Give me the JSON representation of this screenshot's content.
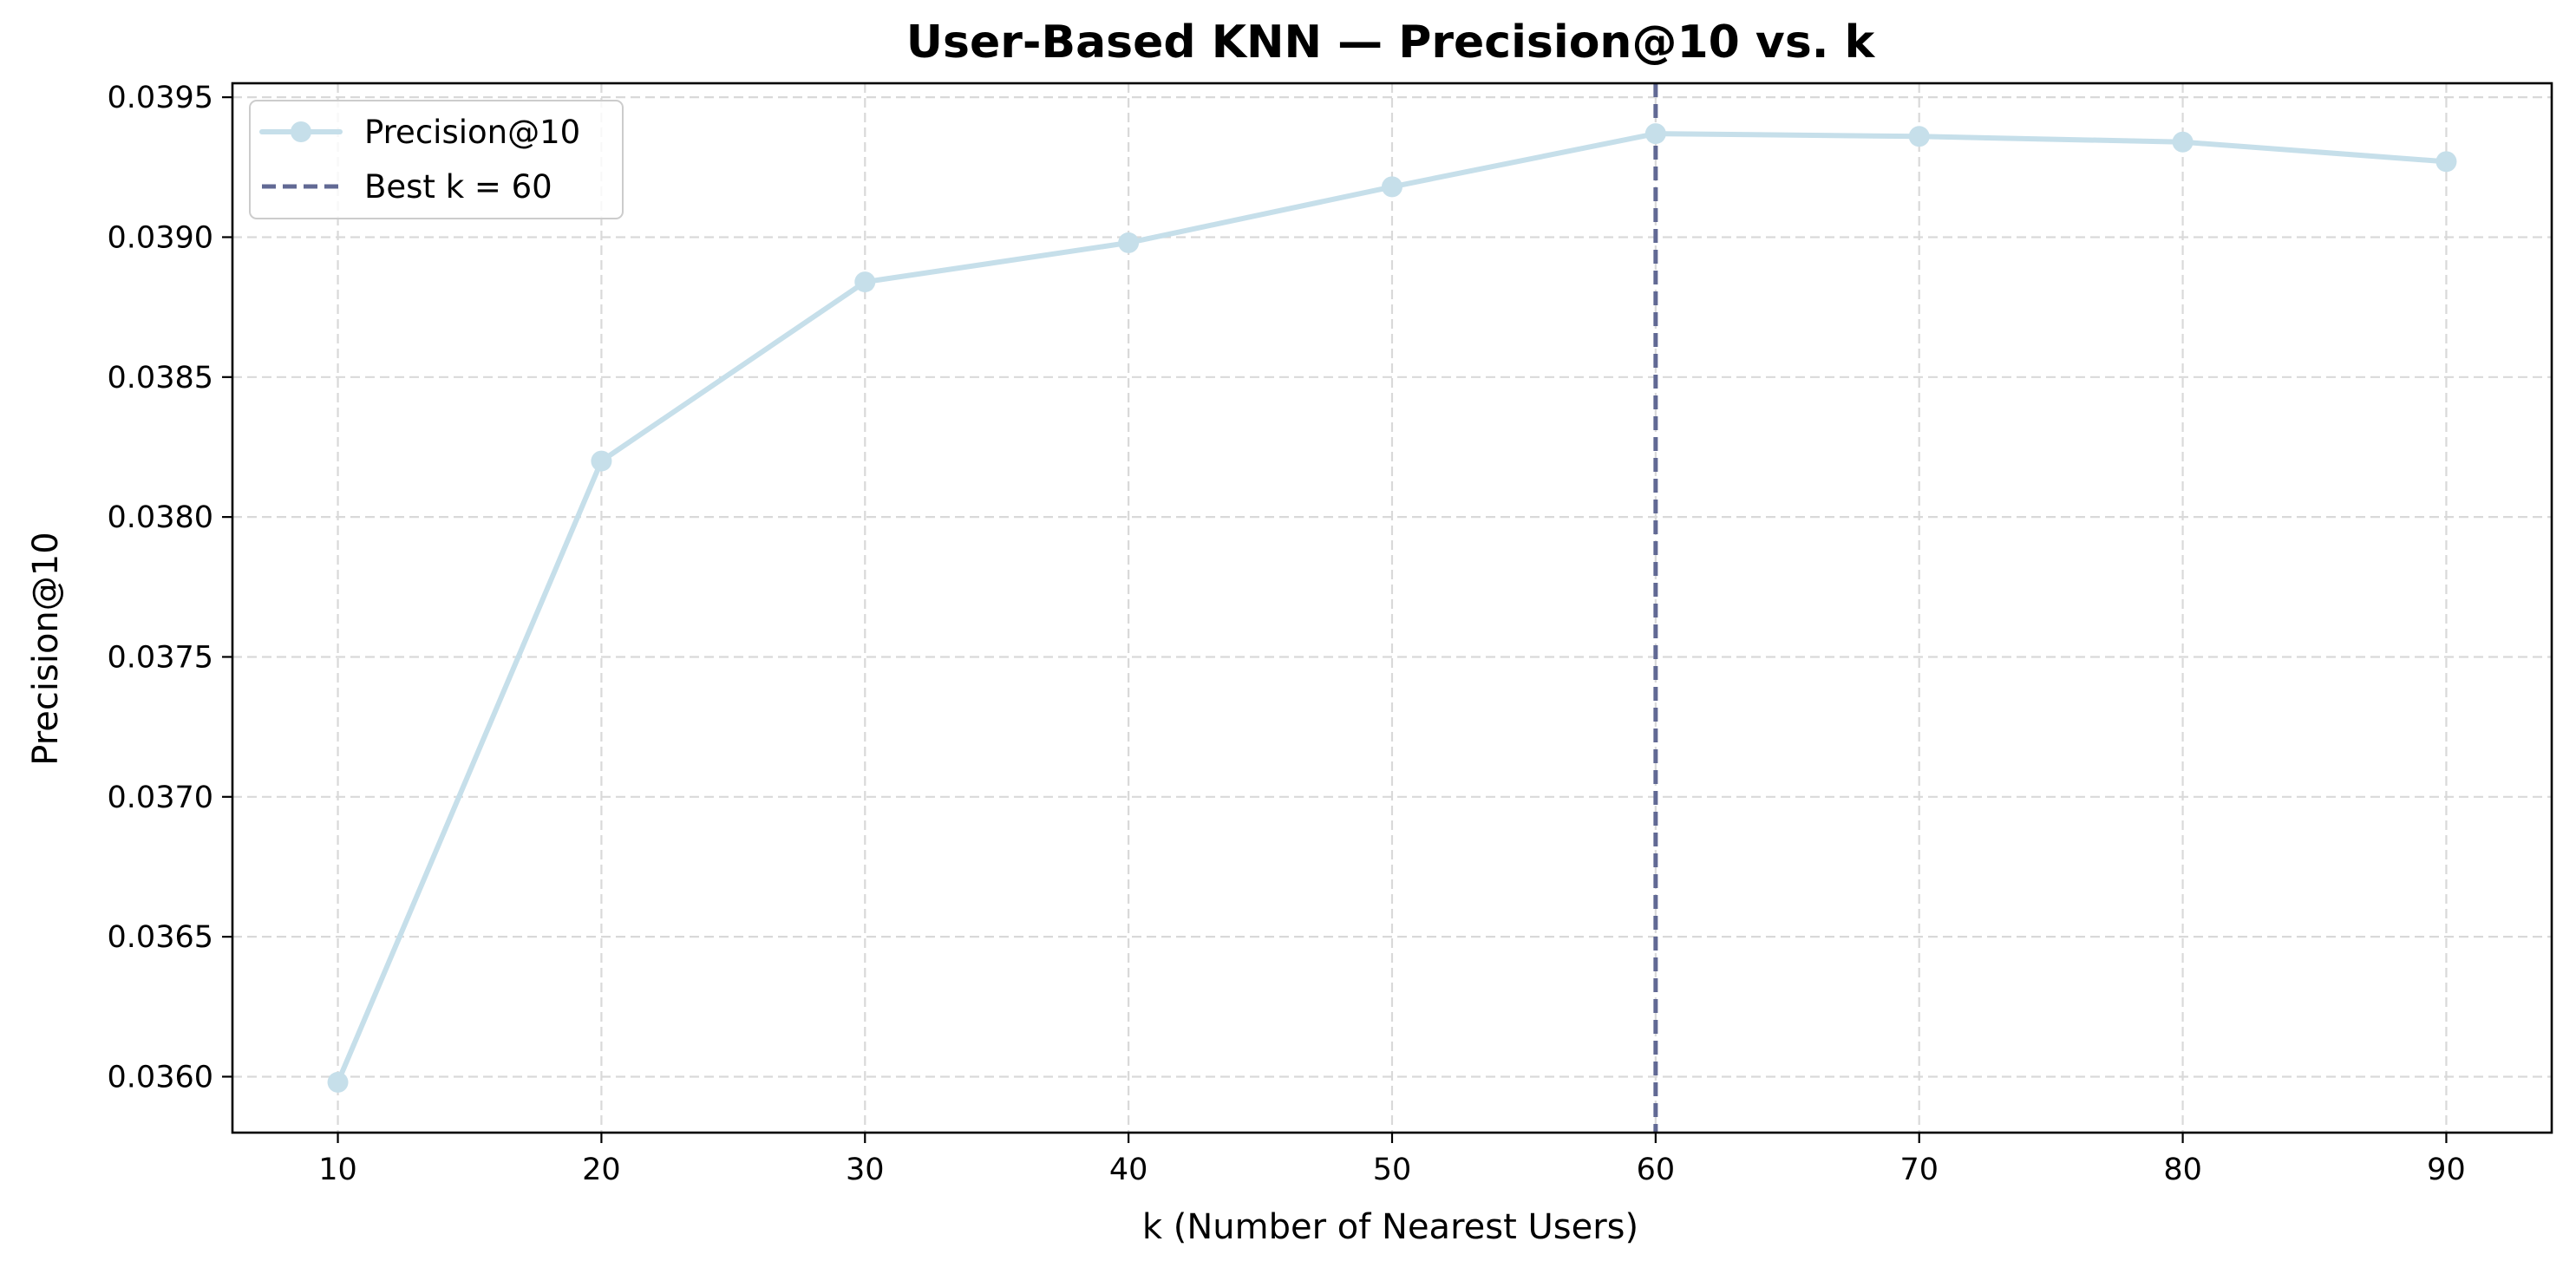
{
  "chart_data": {
    "type": "line",
    "title": "User-Based KNN — Precision@10 vs. k",
    "xlabel": "k (Number of Nearest Users)",
    "ylabel": "Precision@10",
    "x": [
      10,
      20,
      30,
      40,
      50,
      60,
      70,
      80,
      90
    ],
    "series": [
      {
        "name": "Precision@10",
        "values": [
          0.03598,
          0.0382,
          0.03884,
          0.03898,
          0.03918,
          0.03937,
          0.03936,
          0.03934,
          0.03927
        ],
        "color": "#c6dfea"
      }
    ],
    "reference_line": {
      "axis": "x",
      "value": 60,
      "label": "Best k = 60",
      "style": "dashed",
      "color": "#616994"
    },
    "xlim": [
      6,
      94
    ],
    "ylim": [
      0.0358,
      0.03955
    ],
    "xticks": [
      10,
      20,
      30,
      40,
      50,
      60,
      70,
      80,
      90
    ],
    "yticks": [
      0.036,
      0.0365,
      0.037,
      0.0375,
      0.038,
      0.0385,
      0.039,
      0.0395
    ],
    "ytick_labels": [
      "0.0360",
      "0.0365",
      "0.0370",
      "0.0375",
      "0.0380",
      "0.0385",
      "0.0390",
      "0.0395"
    ],
    "grid": true,
    "legend_position": "top-left"
  }
}
